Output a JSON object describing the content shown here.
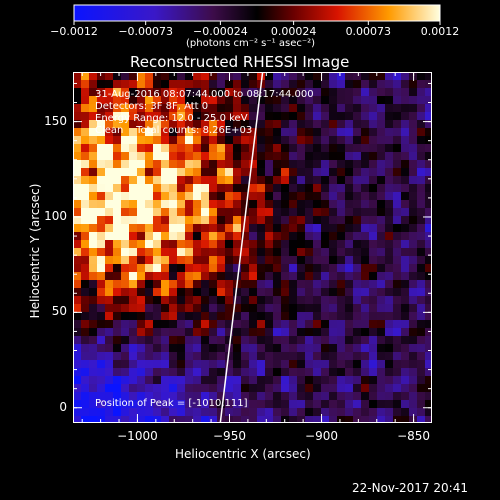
{
  "chart_data": {
    "type": "heatmap",
    "title": "Reconstructed RHESSI Image",
    "xlabel": "Heliocentric X (arcsec)",
    "ylabel": "Heliocentric Y (arcsec)",
    "xlim": [
      -1035,
      -840
    ],
    "ylim": [
      -8,
      176
    ],
    "x_ticks": [
      -1000,
      -950,
      -900,
      -850
    ],
    "x_tick_labels": [
      "−1000",
      "−950",
      "−900",
      "−850"
    ],
    "y_ticks": [
      0,
      50,
      100,
      150
    ],
    "y_tick_labels": [
      "0",
      "50",
      "100",
      "150"
    ],
    "colorbar": {
      "range": [
        -0.0012,
        0.0012
      ],
      "ticks": [
        -0.0012,
        -0.00073,
        -0.00024,
        0.00024,
        0.00073,
        0.0012
      ],
      "tick_labels": [
        "−0.0012",
        "−0.00073",
        "−0.00024",
        "0.00024",
        "0.00073",
        "0.0012"
      ],
      "units": "(photons cm⁻² s⁻¹ asec⁻²)"
    },
    "annotations": {
      "time_range": "31-Aug-2016 08:07:44.000 to 08:17:44.000",
      "detectors": "Detectors: 3F 8F, Att 0",
      "energy": "Energy Range: 12.0 - 25.0 keV",
      "clean_counts": "Clean    Total counts: 8.26E+03",
      "peak": "Position of Peak = [-1010,111]"
    },
    "peak": {
      "x": -1010,
      "y": 111
    },
    "limb_line": [
      [
        -932,
        176
      ],
      [
        -955,
        -8
      ]
    ]
  },
  "footer": {
    "timestamp": "22-Nov-2017 20:41"
  }
}
